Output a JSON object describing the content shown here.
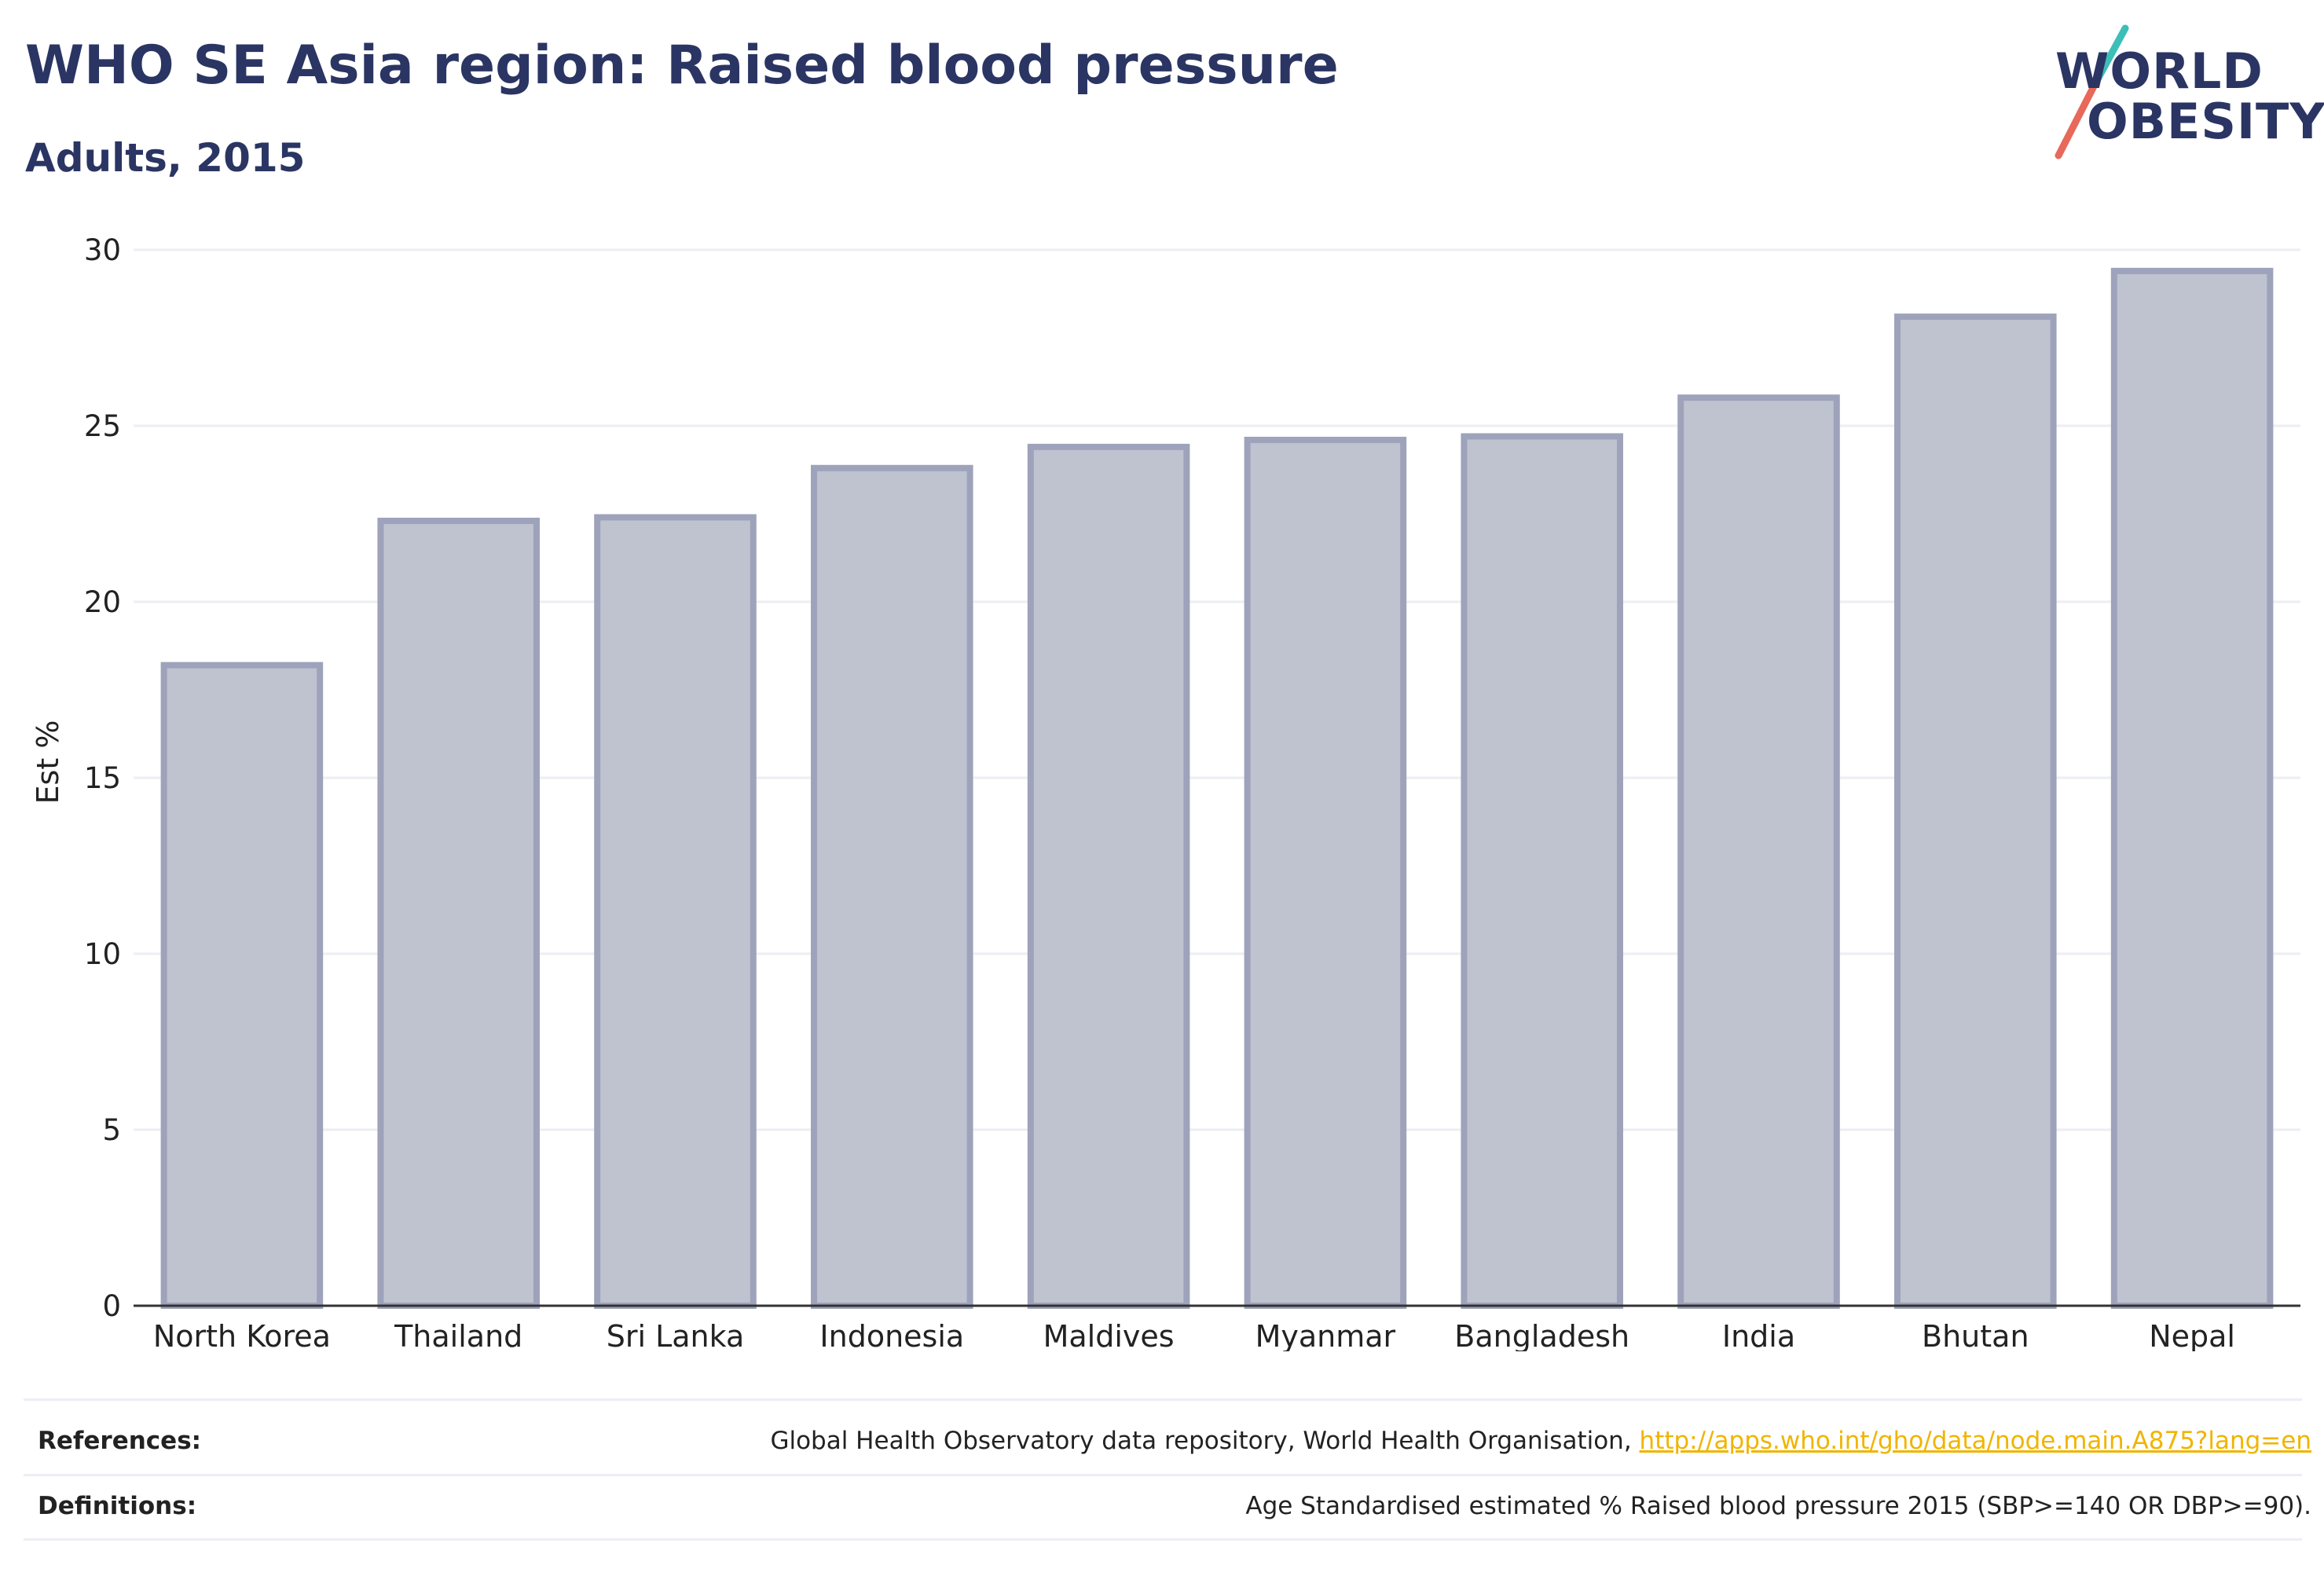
{
  "header": {
    "title": "WHO SE Asia region: Raised blood pressure",
    "subtitle": "Adults, 2015"
  },
  "logo": {
    "line1": "WORLD",
    "line2": "OBESITY",
    "colors": {
      "text": "#2b3563",
      "slash_top": "#3bbfb7",
      "slash_bottom": "#e8685a"
    }
  },
  "chart_data": {
    "type": "bar",
    "categories": [
      "North Korea",
      "Thailand",
      "Sri Lanka",
      "Indonesia",
      "Maldives",
      "Myanmar",
      "Bangladesh",
      "India",
      "Bhutan",
      "Nepal"
    ],
    "values": [
      18.2,
      22.3,
      22.4,
      23.8,
      24.4,
      24.6,
      24.7,
      25.8,
      28.1,
      29.4
    ],
    "title": "WHO SE Asia region: Raised blood pressure",
    "subtitle": "Adults, 2015",
    "xlabel": "",
    "ylabel": "Est %",
    "ylim": [
      0,
      30
    ],
    "yticks": [
      0,
      5,
      10,
      15,
      20,
      25,
      30
    ],
    "grid": true,
    "legend": "none",
    "colors": {
      "bar_fill": "#bfc2cf",
      "bar_edge": "#9ea3bb",
      "grid": "#eceef4",
      "axis": "#333333"
    }
  },
  "footer": {
    "references_label": "References:",
    "references_text": "Global Health Observatory data repository, World Health Organisation, ",
    "references_link": "http://apps.who.int/gho/data/node.main.A875?lang=en",
    "definitions_label": "Definitions:",
    "definitions_text": "Age Standardised estimated % Raised blood pressure 2015 (SBP>=140 OR DBP>=90)."
  }
}
